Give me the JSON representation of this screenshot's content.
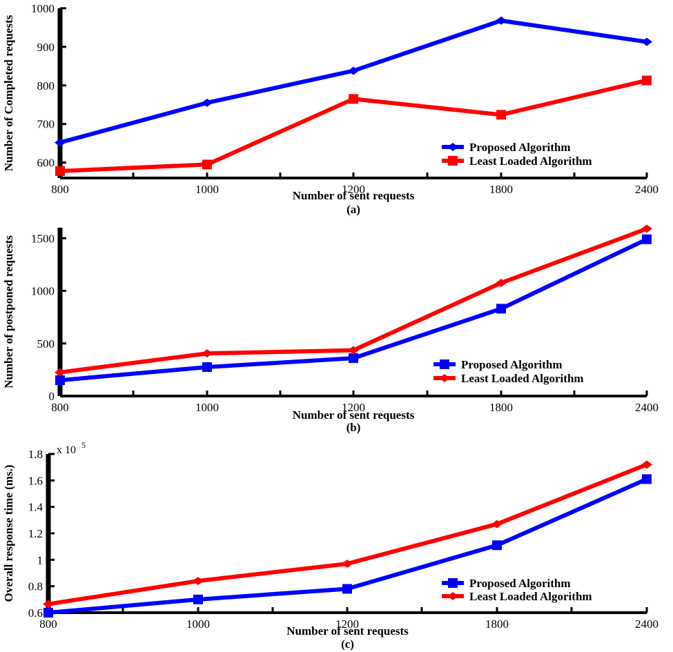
{
  "chart_data": [
    {
      "type": "line",
      "caption": "(a)",
      "xlabel": "Number of sent requests",
      "ylabel": "Number of Completed requests",
      "categories": [
        "800",
        "1000",
        "1200",
        "1800",
        "2400"
      ],
      "ylim": [
        560,
        1000
      ],
      "yticks": [
        600,
        700,
        800,
        900,
        1000
      ],
      "ytick_labels": [
        "600",
        "700",
        "800",
        "900",
        "1000"
      ],
      "legend_position": "bottom-right",
      "grid": false,
      "series": [
        {
          "name": "Proposed Algorithm",
          "color": "#0000ff",
          "marker": "diamond",
          "values": [
            652,
            755,
            838,
            968,
            913
          ]
        },
        {
          "name": "Least Loaded Algorithm",
          "color": "#ff0000",
          "marker": "square",
          "values": [
            578,
            595,
            765,
            724,
            813
          ]
        }
      ]
    },
    {
      "type": "line",
      "caption": "(b)",
      "xlabel": "Number of sent requests",
      "ylabel": "Number of postponed requests",
      "categories": [
        "800",
        "1000",
        "1200",
        "1800",
        "2400"
      ],
      "ylim": [
        0,
        1600
      ],
      "yticks": [
        0,
        500,
        1000,
        1500
      ],
      "ytick_labels": [
        "0",
        "500",
        "1000",
        "1500"
      ],
      "legend_position": "bottom-right",
      "grid": false,
      "series": [
        {
          "name": "Proposed Algorithm",
          "color": "#0000ff",
          "marker": "square",
          "values": [
            150,
            275,
            360,
            830,
            1490
          ]
        },
        {
          "name": "Least Loaded Algorithm",
          "color": "#ff0000",
          "marker": "diamond",
          "values": [
            225,
            405,
            435,
            1075,
            1590
          ]
        }
      ]
    },
    {
      "type": "line",
      "caption": "(c)",
      "xlabel": "Number of sent requests",
      "ylabel": "Overall response time (ms.)",
      "y_multiplier": "x 10",
      "y_exponent": "5",
      "categories": [
        "800",
        "1000",
        "1200",
        "1800",
        "2400"
      ],
      "ylim": [
        0.6,
        1.8
      ],
      "yticks": [
        0.6,
        0.8,
        1.0,
        1.2,
        1.4,
        1.6,
        1.8
      ],
      "ytick_labels": [
        "0.6",
        "0.8",
        "1",
        "1.2",
        "1.4",
        "1.6",
        "1.8"
      ],
      "legend_position": "bottom-right",
      "grid": false,
      "series": [
        {
          "name": "Proposed Algorithm",
          "color": "#0000ff",
          "marker": "square",
          "values": [
            0.6,
            0.7,
            0.78,
            1.11,
            1.61
          ]
        },
        {
          "name": "Least Loaded Algorithm",
          "color": "#ff0000",
          "marker": "diamond",
          "values": [
            0.665,
            0.84,
            0.97,
            1.27,
            1.72
          ]
        }
      ]
    }
  ]
}
